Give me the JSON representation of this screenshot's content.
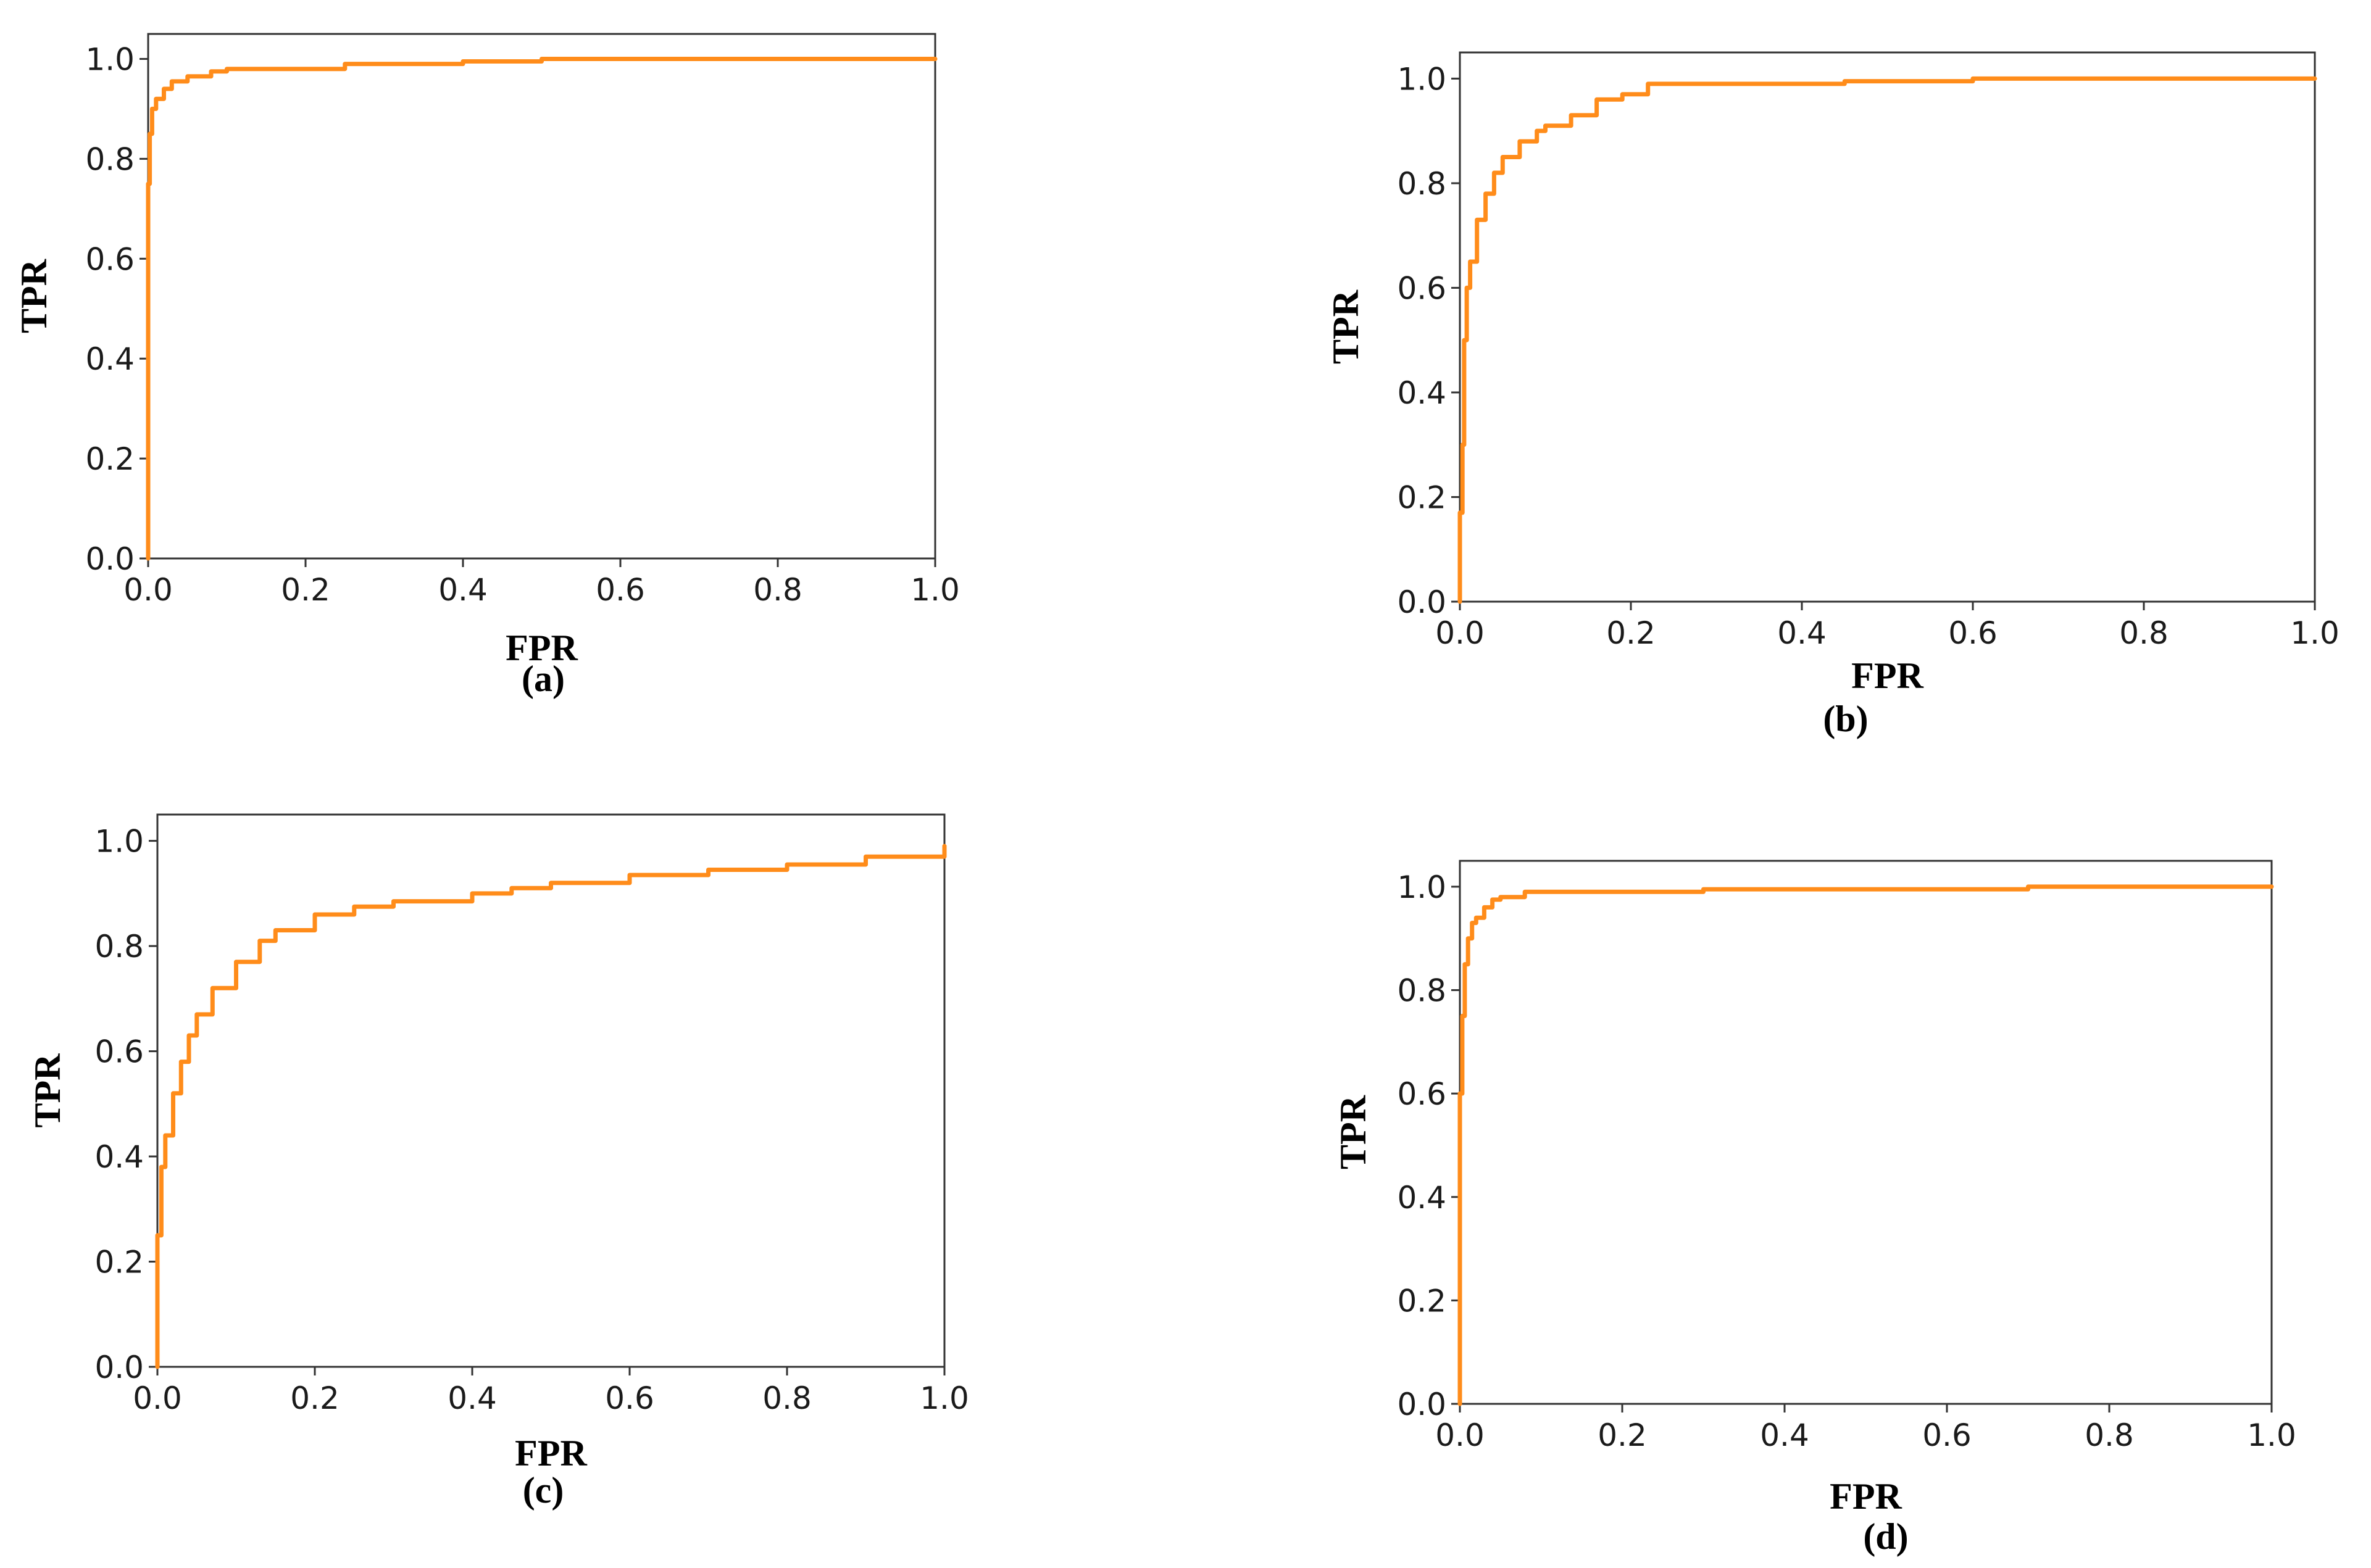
{
  "colors": {
    "roc_line": "#ff8c1a",
    "frame": "#333333",
    "background": "#ffffff"
  },
  "chart_data": [
    {
      "type": "line",
      "panel_label": "(a)",
      "xlabel": "FPR",
      "ylabel": "TPR",
      "xlim": [
        0,
        1
      ],
      "ylim": [
        0,
        1.05
      ],
      "xticks": [
        "0.0",
        "0.2",
        "0.4",
        "0.6",
        "0.8",
        "1.0"
      ],
      "yticks": [
        "0.0",
        "0.2",
        "0.4",
        "0.6",
        "0.8",
        "1.0"
      ],
      "grid": false,
      "series": [
        {
          "x": [
            0,
            0,
            0.002,
            0.005,
            0.01,
            0.02,
            0.03,
            0.05,
            0.08,
            0.1,
            0.2,
            0.25,
            0.4,
            0.5,
            1.0
          ],
          "y": [
            0,
            0.75,
            0.85,
            0.9,
            0.92,
            0.94,
            0.955,
            0.965,
            0.975,
            0.98,
            0.98,
            0.99,
            0.995,
            1.0,
            1.0
          ]
        }
      ]
    },
    {
      "type": "line",
      "panel_label": "(b)",
      "xlabel": "FPR",
      "ylabel": "TPR",
      "xlim": [
        0,
        1
      ],
      "ylim": [
        0,
        1.05
      ],
      "xticks": [
        "0.0",
        "0.2",
        "0.4",
        "0.6",
        "0.8",
        "1.0"
      ],
      "yticks": [
        "0.0",
        "0.2",
        "0.4",
        "0.6",
        "0.8",
        "1.0"
      ],
      "grid": false,
      "series": [
        {
          "x": [
            0,
            0,
            0.003,
            0.005,
            0.008,
            0.012,
            0.02,
            0.03,
            0.04,
            0.05,
            0.07,
            0.09,
            0.1,
            0.13,
            0.16,
            0.19,
            0.22,
            0.3,
            0.45,
            0.6,
            1.0
          ],
          "y": [
            0,
            0.17,
            0.3,
            0.5,
            0.6,
            0.65,
            0.73,
            0.78,
            0.82,
            0.85,
            0.88,
            0.9,
            0.91,
            0.93,
            0.96,
            0.97,
            0.99,
            0.99,
            0.995,
            1.0,
            1.0
          ]
        }
      ]
    },
    {
      "type": "line",
      "panel_label": "(c)",
      "xlabel": "FPR",
      "ylabel": "TPR",
      "xlim": [
        0,
        1
      ],
      "ylim": [
        0,
        1.05
      ],
      "xticks": [
        "0.0",
        "0.2",
        "0.4",
        "0.6",
        "0.8",
        "1.0"
      ],
      "yticks": [
        "0.0",
        "0.2",
        "0.4",
        "0.6",
        "0.8",
        "1.0"
      ],
      "grid": false,
      "series": [
        {
          "x": [
            0,
            0,
            0.005,
            0.01,
            0.02,
            0.03,
            0.04,
            0.05,
            0.07,
            0.1,
            0.13,
            0.15,
            0.2,
            0.25,
            0.3,
            0.4,
            0.45,
            0.5,
            0.6,
            0.7,
            0.8,
            0.9,
            1.0
          ],
          "y": [
            0,
            0.25,
            0.38,
            0.44,
            0.52,
            0.58,
            0.63,
            0.67,
            0.72,
            0.77,
            0.81,
            0.83,
            0.86,
            0.875,
            0.885,
            0.9,
            0.91,
            0.92,
            0.935,
            0.945,
            0.955,
            0.97,
            0.99
          ]
        }
      ]
    },
    {
      "type": "line",
      "panel_label": "(d)",
      "xlabel": "FPR",
      "ylabel": "TPR",
      "xlim": [
        0,
        1
      ],
      "ylim": [
        0,
        1.05
      ],
      "xticks": [
        "0.0",
        "0.2",
        "0.4",
        "0.6",
        "0.8",
        "1.0"
      ],
      "yticks": [
        "0.0",
        "0.2",
        "0.4",
        "0.6",
        "0.8",
        "1.0"
      ],
      "grid": false,
      "series": [
        {
          "x": [
            0,
            0,
            0.003,
            0.006,
            0.01,
            0.015,
            0.02,
            0.03,
            0.04,
            0.05,
            0.08,
            0.15,
            0.3,
            0.7,
            1.0
          ],
          "y": [
            0,
            0.6,
            0.75,
            0.85,
            0.9,
            0.93,
            0.94,
            0.96,
            0.975,
            0.98,
            0.99,
            0.99,
            0.995,
            1.0,
            1.0
          ]
        }
      ]
    }
  ]
}
